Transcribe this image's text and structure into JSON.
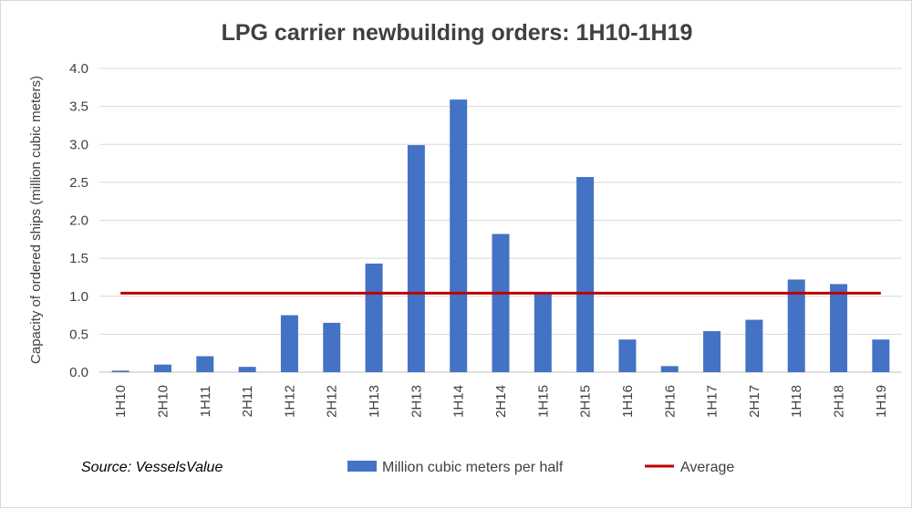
{
  "chart_data": {
    "type": "bar",
    "title": "LPG carrier newbuilding orders: 1H10-1H19",
    "ylabel": "Capacity of ordered ships (million cubic meters)",
    "xlabel": "",
    "ylim": [
      0,
      4.0
    ],
    "yticks": [
      0.0,
      0.5,
      1.0,
      1.5,
      2.0,
      2.5,
      3.0,
      3.5,
      4.0
    ],
    "ytick_labels": [
      "0.0",
      "0.5",
      "1.0",
      "1.5",
      "2.0",
      "2.5",
      "3.0",
      "3.5",
      "4.0"
    ],
    "grid": true,
    "categories": [
      "1H10",
      "2H10",
      "1H11",
      "2H11",
      "1H12",
      "2H12",
      "1H13",
      "2H13",
      "1H14",
      "2H14",
      "1H15",
      "2H15",
      "1H16",
      "2H16",
      "1H17",
      "2H17",
      "1H18",
      "2H18",
      "1H19"
    ],
    "series": [
      {
        "name": "Million cubic meters per half",
        "type": "bar",
        "color": "#4472C4",
        "values": [
          0.02,
          0.1,
          0.21,
          0.07,
          0.75,
          0.65,
          1.43,
          2.99,
          3.59,
          1.82,
          1.03,
          2.57,
          0.43,
          0.08,
          0.54,
          0.69,
          1.22,
          1.16,
          0.43
        ]
      },
      {
        "name": "Average",
        "type": "line",
        "color": "#C00000",
        "value": 1.04
      }
    ],
    "legend_position": "bottom",
    "source": "Source: VesselsValue"
  }
}
